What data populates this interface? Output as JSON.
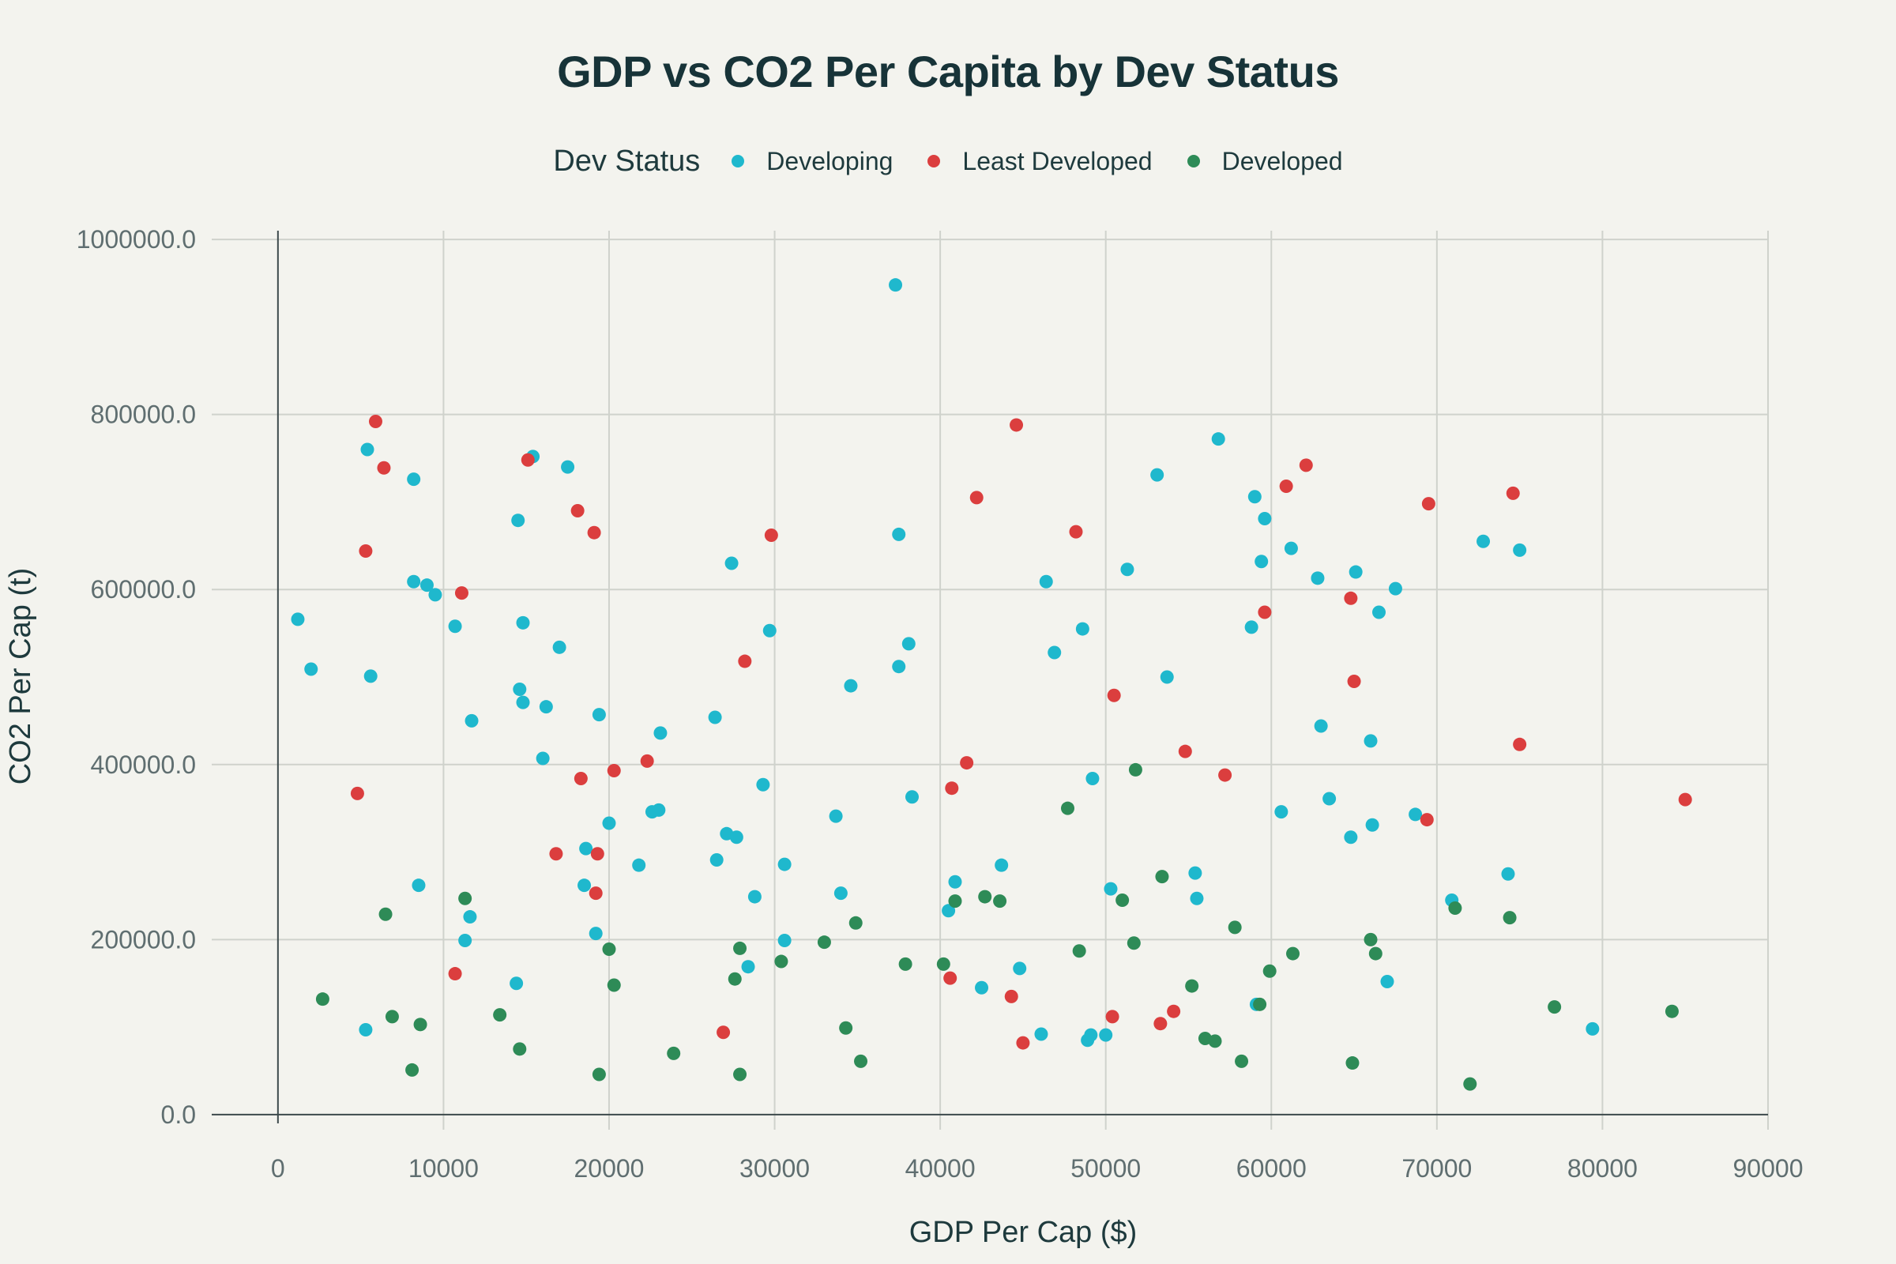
{
  "chart_data": {
    "type": "scatter",
    "title": "GDP vs CO2 Per Capita by Dev Status",
    "xlabel": "GDP Per Cap ($)",
    "ylabel": "CO2 Per Cap (t)",
    "xlim": [
      -4000,
      90000
    ],
    "ylim": [
      -10000,
      1010000
    ],
    "xticks": [
      0,
      10000,
      20000,
      30000,
      40000,
      50000,
      60000,
      70000,
      80000,
      90000
    ],
    "xtick_labels": [
      "0",
      "10000",
      "20000",
      "30000",
      "40000",
      "50000",
      "60000",
      "70000",
      "80000",
      "90000"
    ],
    "yticks": [
      0,
      200000,
      400000,
      600000,
      800000,
      1000000
    ],
    "ytick_labels": [
      "0.0",
      "200000.0",
      "400000.0",
      "600000.0",
      "800000.0",
      "1000000.0"
    ],
    "grid": true,
    "legend": {
      "title": "Dev Status",
      "position": "top-center"
    },
    "series": [
      {
        "name": "Developing",
        "color": "#1fb8cd",
        "points": [
          [
            37300,
            948000
          ],
          [
            56800,
            772000
          ],
          [
            5400,
            760000
          ],
          [
            15400,
            752000
          ],
          [
            17500,
            740000
          ],
          [
            8200,
            726000
          ],
          [
            53100,
            731000
          ],
          [
            59000,
            706000
          ],
          [
            14500,
            679000
          ],
          [
            59600,
            681000
          ],
          [
            37500,
            663000
          ],
          [
            72800,
            655000
          ],
          [
            75000,
            645000
          ],
          [
            61200,
            647000
          ],
          [
            59400,
            632000
          ],
          [
            27400,
            630000
          ],
          [
            51300,
            623000
          ],
          [
            65100,
            620000
          ],
          [
            62800,
            613000
          ],
          [
            46400,
            609000
          ],
          [
            8200,
            609000
          ],
          [
            9000,
            605000
          ],
          [
            67500,
            601000
          ],
          [
            9500,
            594000
          ],
          [
            1200,
            566000
          ],
          [
            10700,
            558000
          ],
          [
            14800,
            562000
          ],
          [
            66500,
            574000
          ],
          [
            58800,
            557000
          ],
          [
            48600,
            555000
          ],
          [
            29700,
            553000
          ],
          [
            38100,
            538000
          ],
          [
            17000,
            534000
          ],
          [
            46900,
            528000
          ],
          [
            37500,
            512000
          ],
          [
            2000,
            509000
          ],
          [
            5600,
            501000
          ],
          [
            53700,
            500000
          ],
          [
            34600,
            490000
          ],
          [
            14600,
            486000
          ],
          [
            14800,
            471000
          ],
          [
            16200,
            466000
          ],
          [
            19400,
            457000
          ],
          [
            26400,
            454000
          ],
          [
            11700,
            450000
          ],
          [
            63000,
            444000
          ],
          [
            23100,
            436000
          ],
          [
            66000,
            427000
          ],
          [
            16000,
            407000
          ],
          [
            49200,
            384000
          ],
          [
            29300,
            377000
          ],
          [
            38300,
            363000
          ],
          [
            63500,
            361000
          ],
          [
            22600,
            346000
          ],
          [
            23000,
            348000
          ],
          [
            60600,
            346000
          ],
          [
            33700,
            341000
          ],
          [
            68700,
            343000
          ],
          [
            20000,
            333000
          ],
          [
            66100,
            331000
          ],
          [
            27100,
            321000
          ],
          [
            27700,
            317000
          ],
          [
            64800,
            317000
          ],
          [
            18600,
            304000
          ],
          [
            26500,
            291000
          ],
          [
            30600,
            286000
          ],
          [
            21800,
            285000
          ],
          [
            43700,
            285000
          ],
          [
            55400,
            276000
          ],
          [
            74300,
            275000
          ],
          [
            8500,
            262000
          ],
          [
            18500,
            262000
          ],
          [
            40900,
            266000
          ],
          [
            50300,
            258000
          ],
          [
            34000,
            253000
          ],
          [
            28800,
            249000
          ],
          [
            55500,
            247000
          ],
          [
            70900,
            245000
          ],
          [
            40500,
            233000
          ],
          [
            11600,
            226000
          ],
          [
            19200,
            207000
          ],
          [
            11300,
            199000
          ],
          [
            30600,
            199000
          ],
          [
            28400,
            169000
          ],
          [
            44800,
            167000
          ],
          [
            14400,
            150000
          ],
          [
            42500,
            145000
          ],
          [
            67000,
            152000
          ],
          [
            59100,
            126000
          ],
          [
            5300,
            97000
          ],
          [
            79400,
            98000
          ],
          [
            46100,
            92000
          ],
          [
            49100,
            91000
          ],
          [
            50000,
            91000
          ],
          [
            48900,
            85000
          ]
        ]
      },
      {
        "name": "Least Developed",
        "color": "#db3e3e",
        "points": [
          [
            5900,
            792000
          ],
          [
            44600,
            788000
          ],
          [
            6400,
            739000
          ],
          [
            15100,
            748000
          ],
          [
            62100,
            742000
          ],
          [
            60900,
            718000
          ],
          [
            42200,
            705000
          ],
          [
            74600,
            710000
          ],
          [
            69500,
            698000
          ],
          [
            18100,
            690000
          ],
          [
            19100,
            665000
          ],
          [
            29800,
            662000
          ],
          [
            48200,
            666000
          ],
          [
            5300,
            644000
          ],
          [
            11100,
            596000
          ],
          [
            64800,
            590000
          ],
          [
            59600,
            574000
          ],
          [
            28200,
            518000
          ],
          [
            65000,
            495000
          ],
          [
            50500,
            479000
          ],
          [
            75000,
            423000
          ],
          [
            54800,
            415000
          ],
          [
            22300,
            404000
          ],
          [
            41600,
            402000
          ],
          [
            20300,
            393000
          ],
          [
            57200,
            388000
          ],
          [
            18300,
            384000
          ],
          [
            40700,
            373000
          ],
          [
            4800,
            367000
          ],
          [
            85000,
            360000
          ],
          [
            69400,
            337000
          ],
          [
            16800,
            298000
          ],
          [
            19300,
            298000
          ],
          [
            19200,
            253000
          ],
          [
            10700,
            161000
          ],
          [
            40600,
            156000
          ],
          [
            44300,
            135000
          ],
          [
            54100,
            118000
          ],
          [
            50400,
            112000
          ],
          [
            53300,
            104000
          ],
          [
            26900,
            94000
          ],
          [
            45000,
            82000
          ]
        ]
      },
      {
        "name": "Developed",
        "color": "#2e8b57",
        "points": [
          [
            51800,
            394000
          ],
          [
            47700,
            350000
          ],
          [
            53400,
            272000
          ],
          [
            11300,
            247000
          ],
          [
            42700,
            249000
          ],
          [
            43600,
            244000
          ],
          [
            51000,
            245000
          ],
          [
            40900,
            244000
          ],
          [
            71100,
            236000
          ],
          [
            6500,
            229000
          ],
          [
            74400,
            225000
          ],
          [
            34900,
            219000
          ],
          [
            57800,
            214000
          ],
          [
            66000,
            200000
          ],
          [
            33000,
            197000
          ],
          [
            51700,
            196000
          ],
          [
            27900,
            190000
          ],
          [
            20000,
            189000
          ],
          [
            48400,
            187000
          ],
          [
            66300,
            184000
          ],
          [
            61300,
            184000
          ],
          [
            30400,
            175000
          ],
          [
            37900,
            172000
          ],
          [
            40200,
            172000
          ],
          [
            59900,
            164000
          ],
          [
            27600,
            155000
          ],
          [
            20300,
            148000
          ],
          [
            55200,
            147000
          ],
          [
            2700,
            132000
          ],
          [
            77100,
            123000
          ],
          [
            84200,
            118000
          ],
          [
            59300,
            126000
          ],
          [
            13400,
            114000
          ],
          [
            6900,
            112000
          ],
          [
            8600,
            103000
          ],
          [
            34300,
            99000
          ],
          [
            56000,
            87000
          ],
          [
            56600,
            84000
          ],
          [
            14600,
            75000
          ],
          [
            23900,
            70000
          ],
          [
            35200,
            61000
          ],
          [
            58200,
            61000
          ],
          [
            64900,
            59000
          ],
          [
            8100,
            51000
          ],
          [
            19400,
            46000
          ],
          [
            27900,
            46000
          ],
          [
            72000,
            35000
          ]
        ]
      }
    ]
  }
}
